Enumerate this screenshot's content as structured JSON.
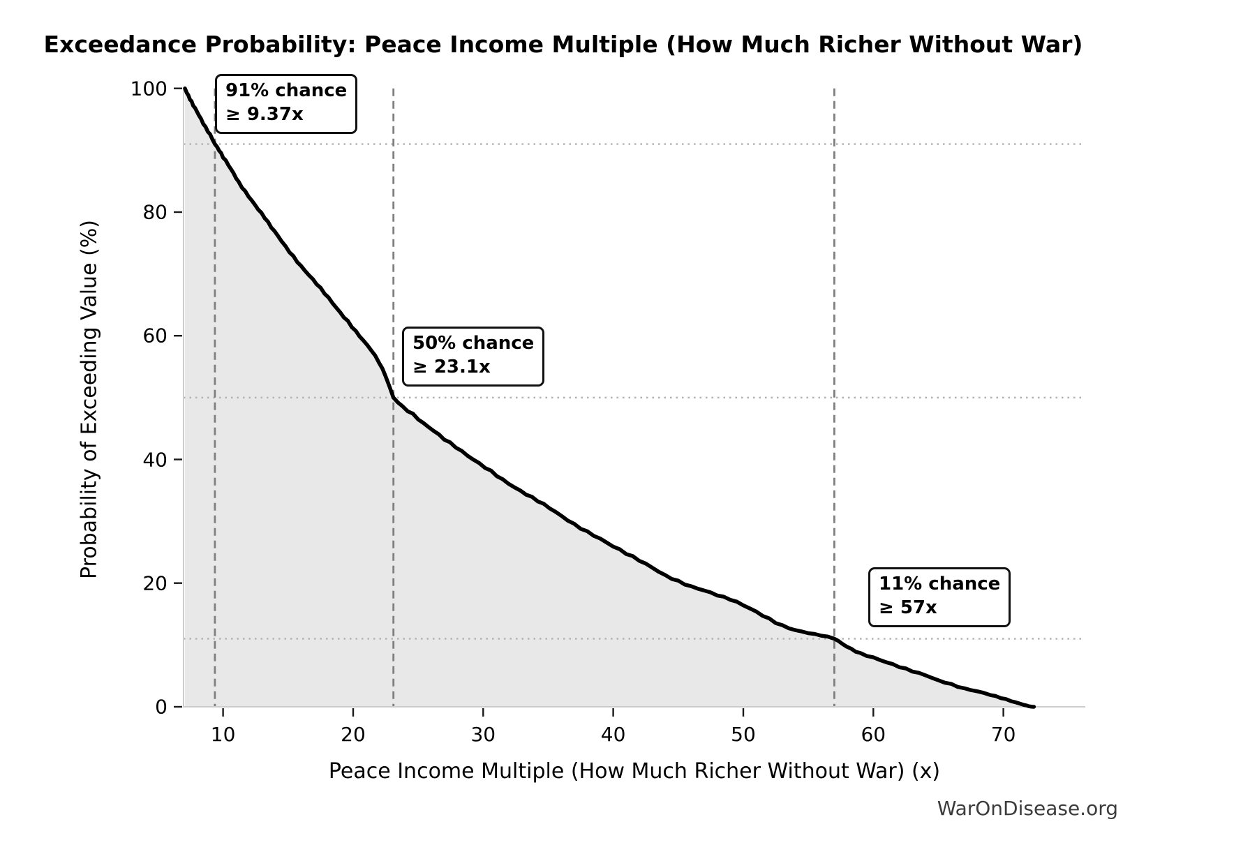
{
  "title": "Exceedance Probability: Peace Income Multiple (How Much Richer Without War)",
  "attribution": "WarOnDisease.org",
  "chart_data": {
    "type": "area",
    "title": "Exceedance Probability: Peace Income Multiple (How Much Richer Without War)",
    "xlabel": "Peace Income Multiple (How Much Richer Without War) (x)",
    "ylabel": "Probability of Exceeding Value (%)",
    "xlim": [
      6.96,
      76.3
    ],
    "ylim": [
      0,
      100
    ],
    "x_ticks": [
      10,
      20,
      30,
      40,
      50,
      60,
      70
    ],
    "y_ticks": [
      0,
      20,
      40,
      60,
      80,
      100
    ],
    "grid": "off",
    "legend": "none",
    "line_color": "#000000",
    "fill_color": "#e8e8e8",
    "dashed_guide_color": "#7f7f7f",
    "dotted_guide_color": "#b3b3b3",
    "spine_color": "#cccccc",
    "annotations": [
      {
        "line1": "91% chance",
        "line2": "≥ 9.37x",
        "x": 9.37,
        "prob": 91
      },
      {
        "line1": "50% chance",
        "line2": "≥ 23.1x",
        "x": 23.1,
        "prob": 50
      },
      {
        "line1": "11% chance",
        "line2": "≥ 57x",
        "x": 57,
        "prob": 11
      }
    ],
    "guide_lines": {
      "vertical_x": [
        9.37,
        23.1,
        57
      ],
      "horizontal_prob": [
        91,
        50,
        11
      ]
    },
    "curve_points": [
      [
        7.07,
        100
      ],
      [
        7.2,
        99.3
      ],
      [
        7.45,
        98.2
      ],
      [
        7.7,
        97.2
      ],
      [
        8.0,
        96.2
      ],
      [
        8.3,
        95.1
      ],
      [
        8.65,
        93.8
      ],
      [
        9.0,
        92.6
      ],
      [
        9.37,
        91.0
      ],
      [
        9.7,
        89.9
      ],
      [
        10.0,
        88.8
      ],
      [
        10.4,
        87.6
      ],
      [
        10.8,
        86.3
      ],
      [
        11.2,
        84.9
      ],
      [
        11.7,
        83.4
      ],
      [
        12.2,
        81.9
      ],
      [
        12.7,
        80.4
      ],
      [
        13.2,
        79.0
      ],
      [
        13.7,
        77.5
      ],
      [
        14.2,
        76.2
      ],
      [
        14.8,
        74.5
      ],
      [
        15.4,
        72.9
      ],
      [
        16.0,
        71.3
      ],
      [
        16.6,
        69.8
      ],
      [
        17.2,
        68.3
      ],
      [
        17.8,
        66.8
      ],
      [
        18.4,
        65.3
      ],
      [
        19.0,
        63.8
      ],
      [
        19.6,
        62.4
      ],
      [
        20.2,
        60.8
      ],
      [
        20.8,
        59.2
      ],
      [
        21.4,
        57.6
      ],
      [
        22.0,
        55.6
      ],
      [
        22.5,
        53.4
      ],
      [
        23.1,
        50.0
      ],
      [
        23.8,
        48.6
      ],
      [
        24.6,
        47.4
      ],
      [
        25.4,
        45.9
      ],
      [
        26.2,
        44.6
      ],
      [
        27.0,
        43.2
      ],
      [
        27.9,
        41.9
      ],
      [
        28.8,
        40.6
      ],
      [
        29.7,
        39.4
      ],
      [
        30.6,
        38.2
      ],
      [
        31.5,
        36.8
      ],
      [
        32.4,
        35.5
      ],
      [
        33.3,
        34.3
      ],
      [
        34.2,
        33.2
      ],
      [
        35.1,
        32.1
      ],
      [
        36.0,
        30.9
      ],
      [
        37.0,
        29.6
      ],
      [
        38.0,
        28.4
      ],
      [
        39.0,
        27.2
      ],
      [
        40.0,
        25.9
      ],
      [
        41.0,
        24.7
      ],
      [
        42.0,
        23.6
      ],
      [
        43.0,
        22.5
      ],
      [
        44.0,
        21.3
      ],
      [
        45.0,
        20.4
      ],
      [
        46.0,
        19.5
      ],
      [
        47.0,
        18.8
      ],
      [
        48.0,
        18.0
      ],
      [
        49.0,
        17.3
      ],
      [
        50.0,
        16.4
      ],
      [
        51.0,
        15.4
      ],
      [
        52.0,
        14.3
      ],
      [
        53.0,
        13.2
      ],
      [
        54.0,
        12.4
      ],
      [
        55.0,
        11.9
      ],
      [
        56.0,
        11.5
      ],
      [
        57.0,
        11.0
      ],
      [
        57.6,
        10.2
      ],
      [
        58.3,
        9.4
      ],
      [
        59.0,
        8.7
      ],
      [
        60.0,
        8.0
      ],
      [
        61.0,
        7.2
      ],
      [
        62.0,
        6.4
      ],
      [
        63.0,
        5.7
      ],
      [
        64.0,
        5.1
      ],
      [
        65.0,
        4.3
      ],
      [
        66.0,
        3.7
      ],
      [
        67.0,
        3.0
      ],
      [
        68.0,
        2.5
      ],
      [
        69.0,
        1.9
      ],
      [
        69.8,
        1.4
      ],
      [
        70.6,
        0.9
      ],
      [
        71.3,
        0.5
      ],
      [
        71.8,
        0.2
      ],
      [
        72.1,
        0.05
      ],
      [
        72.35,
        0.0
      ]
    ]
  }
}
